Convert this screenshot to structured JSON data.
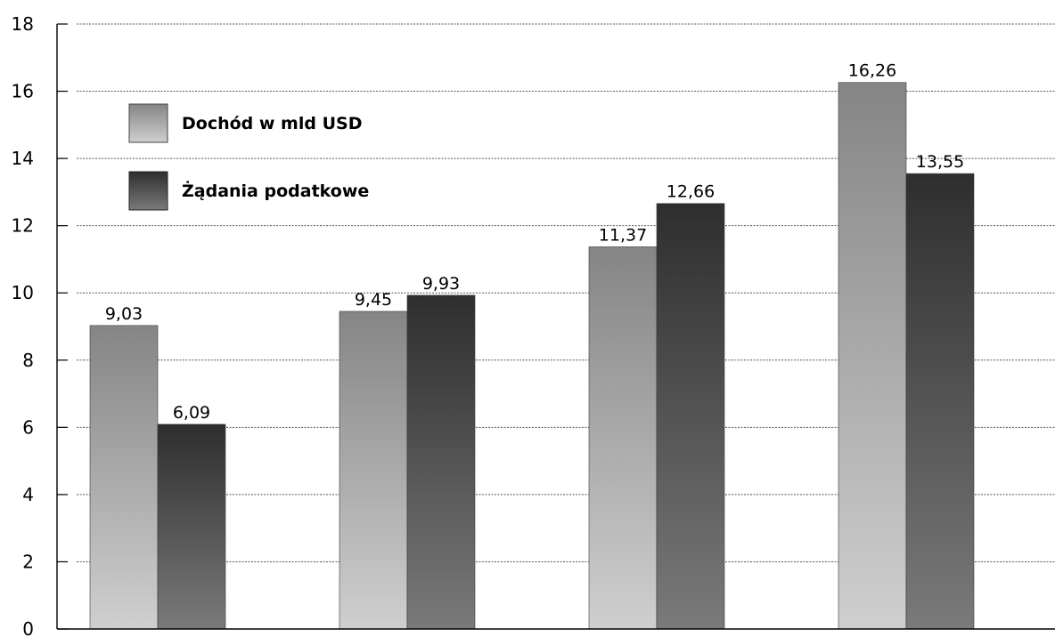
{
  "chart_data": {
    "type": "bar",
    "categories": [
      "",
      "",
      "",
      ""
    ],
    "series": [
      {
        "name": "Dochód w mld USD",
        "values": [
          9.03,
          9.45,
          11.37,
          16.26
        ],
        "labels": [
          "9,03",
          "9,45",
          "11,37",
          "16,26"
        ]
      },
      {
        "name": "Żądania podatkowe",
        "values": [
          6.09,
          9.93,
          12.66,
          13.55
        ],
        "labels": [
          "6,09",
          "9,93",
          "12,66",
          "13,55"
        ]
      }
    ],
    "ylim": [
      0,
      18
    ],
    "yticks": [
      0,
      2,
      4,
      6,
      8,
      10,
      12,
      14,
      16,
      18
    ],
    "grid": true,
    "legend": "top-left",
    "colors": {
      "series1_top": "#858585",
      "series1_bottom": "#cfcfcf",
      "series2_top": "#2e2e2e",
      "series2_bottom": "#7a7a7a",
      "grid": "#555555",
      "axis": "#000000"
    }
  }
}
